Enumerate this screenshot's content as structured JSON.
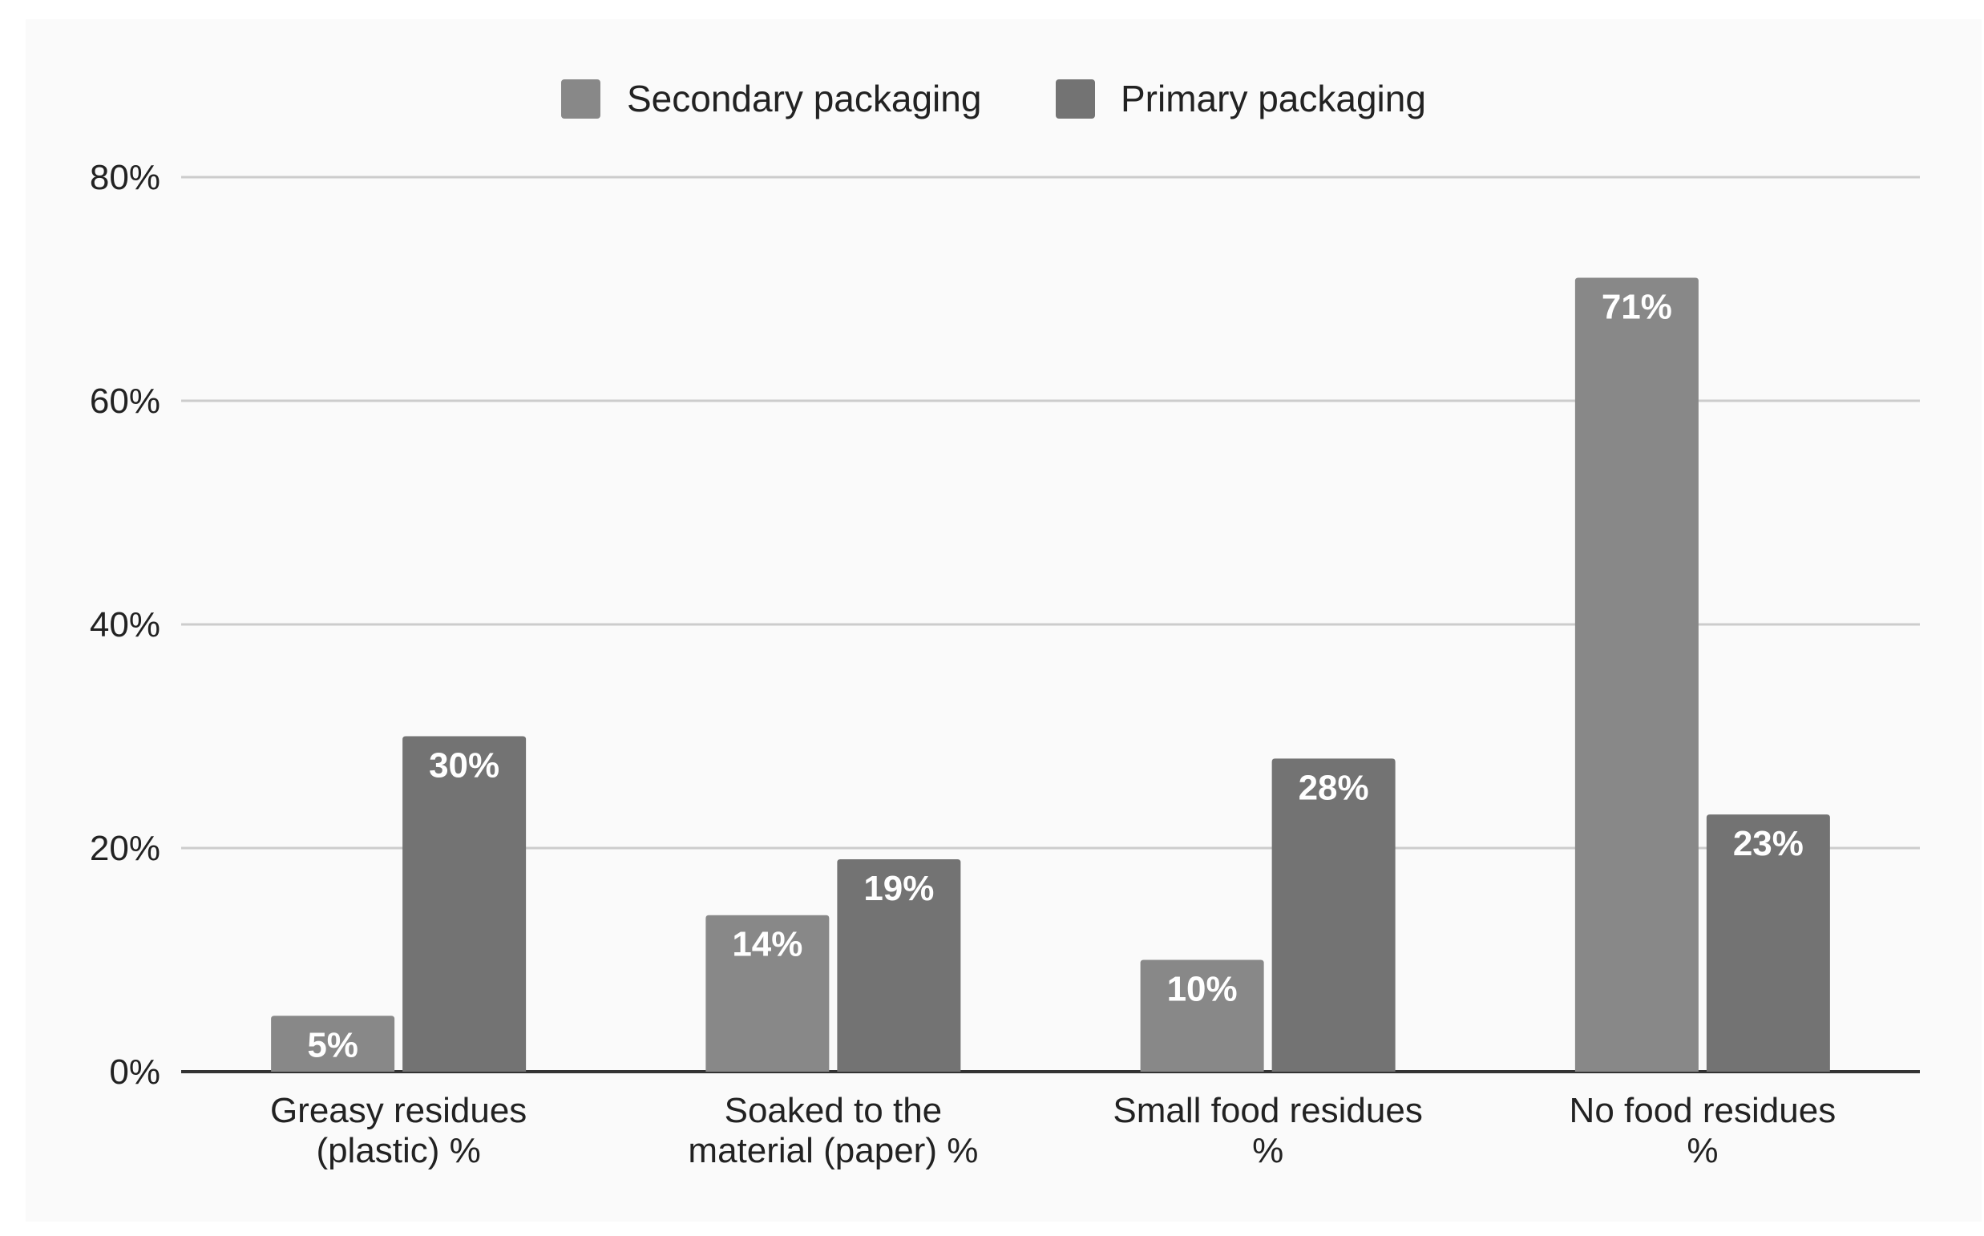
{
  "chart_data": {
    "type": "bar",
    "title": "",
    "xlabel": "",
    "ylabel": "",
    "ylim": [
      0,
      80
    ],
    "yticks": [
      0,
      20,
      40,
      60,
      80
    ],
    "ytick_labels": [
      "0%",
      "20%",
      "40%",
      "60%",
      "80%"
    ],
    "grid": true,
    "legend_position": "top-center",
    "categories": [
      [
        "Greasy residues",
        "(plastic) %"
      ],
      [
        "Soaked to the",
        "material (paper) %"
      ],
      [
        "Small food residues",
        "%"
      ],
      [
        "No food residues",
        "%"
      ]
    ],
    "series": [
      {
        "name": "Secondary packaging",
        "color": "#888888",
        "values": [
          5,
          14,
          10,
          71
        ],
        "labels": [
          "5%",
          "14%",
          "10%",
          "71%"
        ]
      },
      {
        "name": "Primary packaging",
        "color": "#737373",
        "values": [
          30,
          19,
          28,
          23
        ],
        "labels": [
          "30%",
          "19%",
          "28%",
          "23%"
        ]
      }
    ],
    "colors": {
      "background": "#ffffff",
      "panel": "#fafafa",
      "grid": "#cccccc",
      "axis": "#333333"
    }
  }
}
